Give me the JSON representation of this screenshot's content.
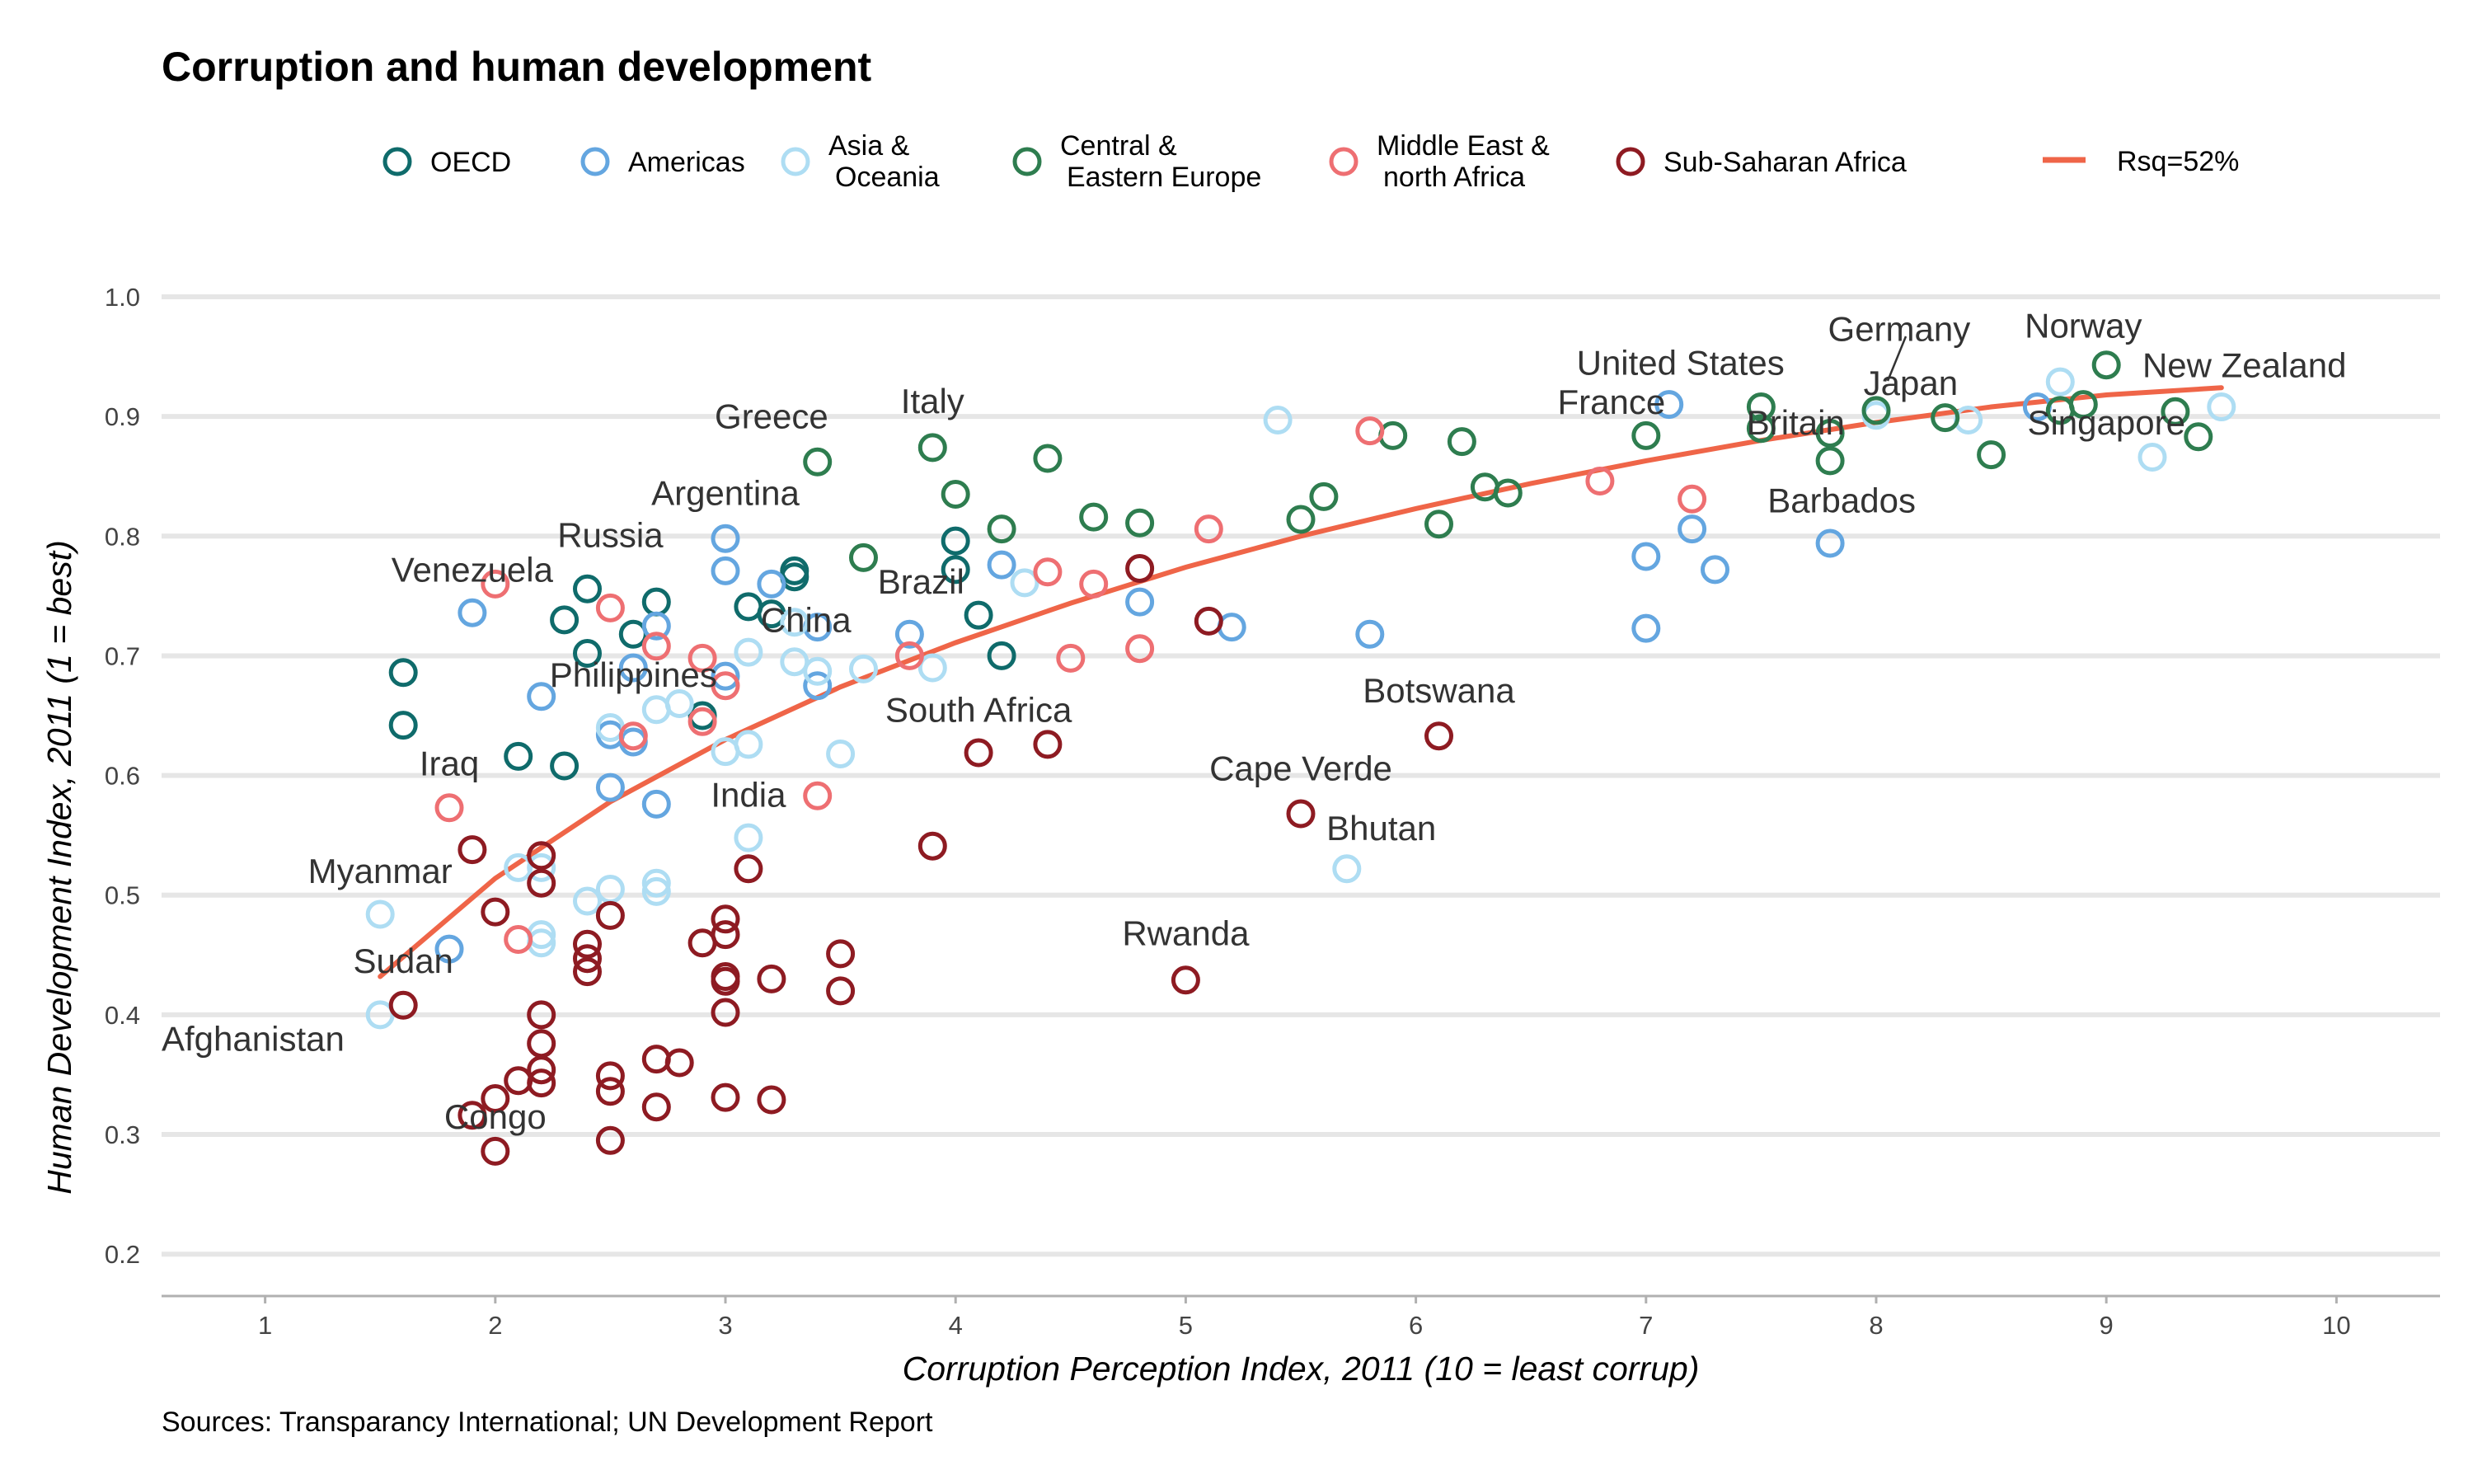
{
  "chart_data": {
    "type": "scatter",
    "title": "Corruption and human development",
    "xlabel": "Corruption Perception Index, 2011 (10 = least corrup)",
    "ylabel": "Human Development Index, 2011 (1 = best)",
    "source": "Sources: Transparancy International; UN Development Report",
    "xlim": [
      0.55,
      10.45
    ],
    "ylim": [
      0.165,
      1.0
    ],
    "xticks": [
      1,
      2,
      3,
      4,
      5,
      6,
      7,
      8,
      9,
      10
    ],
    "yticks": [
      0.2,
      0.3,
      0.4,
      0.5,
      0.6,
      0.7,
      0.8,
      0.9,
      1.0
    ],
    "ytick_labels": [
      "0.2",
      "0.3",
      "0.4",
      "0.5",
      "0.6",
      "0.7",
      "0.8",
      "0.9",
      "1.0"
    ],
    "grid": "horizontal",
    "legend_position": "top",
    "series": [
      {
        "name": "OECD",
        "color": "#0F6B6B",
        "points": [
          [
            1.6,
            0.686
          ],
          [
            1.6,
            0.642
          ],
          [
            2.1,
            0.616
          ],
          [
            2.3,
            0.608
          ],
          [
            2.3,
            0.73
          ],
          [
            2.4,
            0.756
          ],
          [
            2.4,
            0.702
          ],
          [
            2.6,
            0.718
          ],
          [
            2.7,
            0.745
          ],
          [
            2.9,
            0.65
          ],
          [
            3.1,
            0.741
          ],
          [
            3.2,
            0.735
          ],
          [
            3.3,
            0.771
          ],
          [
            3.3,
            0.766
          ],
          [
            4.0,
            0.796
          ],
          [
            4.0,
            0.772
          ],
          [
            4.1,
            0.734
          ],
          [
            4.2,
            0.7
          ]
        ]
      },
      {
        "name": "Americas",
        "color": "#64A6E0",
        "points": [
          [
            1.8,
            0.455
          ],
          [
            1.9,
            0.736
          ],
          [
            2.2,
            0.666
          ],
          [
            2.5,
            0.59
          ],
          [
            2.5,
            0.634
          ],
          [
            2.6,
            0.628
          ],
          [
            2.6,
            0.69
          ],
          [
            2.7,
            0.576
          ],
          [
            2.7,
            0.725
          ],
          [
            3.0,
            0.798
          ],
          [
            3.0,
            0.771
          ],
          [
            3.0,
            0.683
          ],
          [
            3.2,
            0.76
          ],
          [
            3.4,
            0.724
          ],
          [
            3.4,
            0.675
          ],
          [
            3.8,
            0.718
          ],
          [
            4.2,
            0.776
          ],
          [
            4.8,
            0.745
          ],
          [
            5.2,
            0.724
          ],
          [
            5.8,
            0.718
          ],
          [
            7.0,
            0.783
          ],
          [
            7.0,
            0.723
          ],
          [
            7.1,
            0.91
          ],
          [
            7.2,
            0.806
          ],
          [
            7.3,
            0.772
          ],
          [
            7.8,
            0.794
          ],
          [
            8.7,
            0.908
          ]
        ]
      },
      {
        "name": "Asia &\nOceania",
        "color": "#AEDDF3",
        "points": [
          [
            1.5,
            0.484
          ],
          [
            1.5,
            0.4
          ],
          [
            2.1,
            0.523
          ],
          [
            2.2,
            0.523
          ],
          [
            2.2,
            0.467
          ],
          [
            2.2,
            0.46
          ],
          [
            2.4,
            0.495
          ],
          [
            2.5,
            0.505
          ],
          [
            2.5,
            0.64
          ],
          [
            2.7,
            0.51
          ],
          [
            2.7,
            0.503
          ],
          [
            2.7,
            0.655
          ],
          [
            2.8,
            0.66
          ],
          [
            3.0,
            0.62
          ],
          [
            3.1,
            0.626
          ],
          [
            3.1,
            0.548
          ],
          [
            3.1,
            0.703
          ],
          [
            3.3,
            0.728
          ],
          [
            3.3,
            0.695
          ],
          [
            3.4,
            0.687
          ],
          [
            3.5,
            0.618
          ],
          [
            3.6,
            0.689
          ],
          [
            3.9,
            0.69
          ],
          [
            4.3,
            0.761
          ],
          [
            5.4,
            0.897
          ],
          [
            5.7,
            0.522
          ],
          [
            8.0,
            0.901
          ],
          [
            8.4,
            0.897
          ],
          [
            8.8,
            0.929
          ],
          [
            9.2,
            0.866
          ],
          [
            9.5,
            0.908
          ]
        ]
      },
      {
        "name": "Central &\nEastern Europe",
        "color": "#2E7D4F",
        "points": [
          [
            3.4,
            0.862
          ],
          [
            3.6,
            0.782
          ],
          [
            3.9,
            0.874
          ],
          [
            4.0,
            0.835
          ],
          [
            4.2,
            0.806
          ],
          [
            4.4,
            0.865
          ],
          [
            4.6,
            0.816
          ],
          [
            4.8,
            0.811
          ],
          [
            5.5,
            0.814
          ],
          [
            5.6,
            0.833
          ],
          [
            5.9,
            0.884
          ],
          [
            6.1,
            0.81
          ],
          [
            6.2,
            0.879
          ],
          [
            6.3,
            0.841
          ],
          [
            6.4,
            0.836
          ],
          [
            7.0,
            0.884
          ],
          [
            7.5,
            0.908
          ],
          [
            7.5,
            0.89
          ],
          [
            7.8,
            0.886
          ],
          [
            7.8,
            0.863
          ],
          [
            8.0,
            0.905
          ],
          [
            8.3,
            0.899
          ],
          [
            8.5,
            0.868
          ],
          [
            8.8,
            0.905
          ],
          [
            8.9,
            0.91
          ],
          [
            9.0,
            0.943
          ],
          [
            9.3,
            0.904
          ],
          [
            9.4,
            0.883
          ]
        ]
      },
      {
        "name": "Middle East &\nnorth Africa",
        "color": "#EE6F72",
        "points": [
          [
            1.8,
            0.573
          ],
          [
            2.0,
            0.76
          ],
          [
            2.1,
            0.463
          ],
          [
            2.5,
            0.74
          ],
          [
            2.6,
            0.633
          ],
          [
            2.7,
            0.708
          ],
          [
            2.9,
            0.698
          ],
          [
            2.9,
            0.645
          ],
          [
            3.0,
            0.675
          ],
          [
            3.4,
            0.583
          ],
          [
            3.8,
            0.7
          ],
          [
            4.4,
            0.77
          ],
          [
            4.5,
            0.698
          ],
          [
            4.6,
            0.76
          ],
          [
            4.8,
            0.706
          ],
          [
            5.1,
            0.806
          ],
          [
            5.8,
            0.888
          ],
          [
            6.8,
            0.846
          ],
          [
            7.2,
            0.831
          ]
        ]
      },
      {
        "name": "Sub-Saharan Africa",
        "color": "#8E1B22",
        "points": [
          [
            1.6,
            0.408
          ],
          [
            1.9,
            0.538
          ],
          [
            1.9,
            0.316
          ],
          [
            2.0,
            0.486
          ],
          [
            2.0,
            0.33
          ],
          [
            2.0,
            0.286
          ],
          [
            2.1,
            0.345
          ],
          [
            2.2,
            0.533
          ],
          [
            2.2,
            0.51
          ],
          [
            2.2,
            0.4
          ],
          [
            2.2,
            0.376
          ],
          [
            2.2,
            0.354
          ],
          [
            2.2,
            0.343
          ],
          [
            2.4,
            0.459
          ],
          [
            2.4,
            0.447
          ],
          [
            2.4,
            0.436
          ],
          [
            2.5,
            0.483
          ],
          [
            2.5,
            0.349
          ],
          [
            2.5,
            0.336
          ],
          [
            2.5,
            0.295
          ],
          [
            2.7,
            0.363
          ],
          [
            2.7,
            0.323
          ],
          [
            2.8,
            0.36
          ],
          [
            2.9,
            0.46
          ],
          [
            3.0,
            0.48
          ],
          [
            3.0,
            0.467
          ],
          [
            3.0,
            0.432
          ],
          [
            3.0,
            0.428
          ],
          [
            3.0,
            0.402
          ],
          [
            3.0,
            0.331
          ],
          [
            3.1,
            0.522
          ],
          [
            3.2,
            0.43
          ],
          [
            3.2,
            0.329
          ],
          [
            3.5,
            0.451
          ],
          [
            3.5,
            0.42
          ],
          [
            3.9,
            0.541
          ],
          [
            4.1,
            0.619
          ],
          [
            4.4,
            0.626
          ],
          [
            4.8,
            0.773
          ],
          [
            5.0,
            0.429
          ],
          [
            5.1,
            0.729
          ],
          [
            5.5,
            0.568
          ],
          [
            6.1,
            0.633
          ]
        ]
      }
    ],
    "fit": {
      "name": "Rsq=52%",
      "color": "#EF6548",
      "points": [
        [
          1.5,
          0.432
        ],
        [
          2.0,
          0.514
        ],
        [
          2.5,
          0.578
        ],
        [
          3.0,
          0.63
        ],
        [
          3.5,
          0.674
        ],
        [
          4.0,
          0.711
        ],
        [
          4.5,
          0.744
        ],
        [
          5.0,
          0.774
        ],
        [
          5.5,
          0.8
        ],
        [
          6.0,
          0.823
        ],
        [
          6.5,
          0.844
        ],
        [
          7.0,
          0.863
        ],
        [
          7.5,
          0.88
        ],
        [
          8.0,
          0.895
        ],
        [
          8.5,
          0.908
        ],
        [
          9.0,
          0.918
        ],
        [
          9.5,
          0.924
        ]
      ]
    },
    "annotations": [
      {
        "text": "Afghanistan",
        "x": 0.55,
        "y": 0.37,
        "anchor": "start"
      },
      {
        "text": "Sudan",
        "x": 1.6,
        "y": 0.435,
        "anchor": "middle"
      },
      {
        "text": "Congo",
        "x": 2.0,
        "y": 0.305,
        "anchor": "middle"
      },
      {
        "text": "Myanmar",
        "x": 1.5,
        "y": 0.51,
        "anchor": "middle"
      },
      {
        "text": "Iraq",
        "x": 1.8,
        "y": 0.6,
        "anchor": "middle"
      },
      {
        "text": "Venezuela",
        "x": 1.9,
        "y": 0.762,
        "anchor": "middle"
      },
      {
        "text": "Russia",
        "x": 2.5,
        "y": 0.791,
        "anchor": "middle"
      },
      {
        "text": "Philippines",
        "x": 2.6,
        "y": 0.674,
        "anchor": "middle"
      },
      {
        "text": "Argentina",
        "x": 3.0,
        "y": 0.826,
        "anchor": "middle"
      },
      {
        "text": "Greece",
        "x": 3.2,
        "y": 0.89,
        "anchor": "middle"
      },
      {
        "text": "Italy",
        "x": 3.9,
        "y": 0.903,
        "anchor": "middle"
      },
      {
        "text": "China",
        "x": 3.35,
        "y": 0.72,
        "anchor": "middle"
      },
      {
        "text": "Brazil",
        "x": 3.85,
        "y": 0.752,
        "anchor": "middle"
      },
      {
        "text": "India",
        "x": 3.1,
        "y": 0.574,
        "anchor": "middle"
      },
      {
        "text": "South Africa",
        "x": 4.1,
        "y": 0.645,
        "anchor": "middle"
      },
      {
        "text": "Rwanda",
        "x": 5.0,
        "y": 0.458,
        "anchor": "middle"
      },
      {
        "text": "Cape Verde",
        "x": 5.5,
        "y": 0.596,
        "anchor": "middle"
      },
      {
        "text": "Bhutan",
        "x": 5.85,
        "y": 0.546,
        "anchor": "middle"
      },
      {
        "text": "Botswana",
        "x": 6.1,
        "y": 0.661,
        "anchor": "middle"
      },
      {
        "text": "France",
        "x": 6.85,
        "y": 0.902,
        "anchor": "middle"
      },
      {
        "text": "United States",
        "x": 7.15,
        "y": 0.935,
        "anchor": "middle"
      },
      {
        "text": "Britain",
        "x": 7.65,
        "y": 0.885,
        "anchor": "middle"
      },
      {
        "text": "Barbados",
        "x": 7.85,
        "y": 0.82,
        "anchor": "middle"
      },
      {
        "text": "Germany",
        "x": 8.1,
        "y": 0.963,
        "anchor": "middle"
      },
      {
        "text": "Japan",
        "x": 8.15,
        "y": 0.918,
        "anchor": "middle"
      },
      {
        "text": "Norway",
        "x": 8.9,
        "y": 0.966,
        "anchor": "middle"
      },
      {
        "text": "New Zealand",
        "x": 9.6,
        "y": 0.933,
        "anchor": "middle"
      },
      {
        "text": "Singapore",
        "x": 9.0,
        "y": 0.885,
        "anchor": "middle"
      }
    ]
  }
}
